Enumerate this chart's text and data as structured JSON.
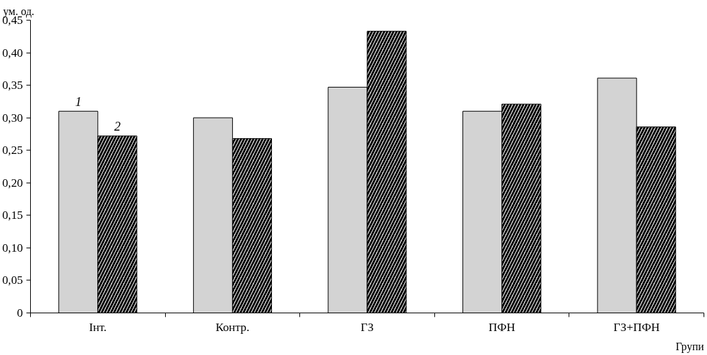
{
  "chart_data": {
    "type": "bar",
    "ylabel": "ум. од.",
    "xlabel": "Групи",
    "categories": [
      "Інт.",
      "Контр.",
      "ГЗ",
      "ПФН",
      "ГЗ+ПФН"
    ],
    "series": [
      {
        "name": "1",
        "color": "#d3d3d3",
        "values": [
          0.31,
          0.3,
          0.347,
          0.31,
          0.361
        ]
      },
      {
        "name": "2",
        "color": "#000000",
        "values": [
          0.272,
          0.268,
          0.433,
          0.321,
          0.286
        ]
      }
    ],
    "ylim": [
      0,
      0.45
    ],
    "yticks": [
      0,
      {
        "value": 0.05,
        "label": "0,05"
      },
      {
        "value": 0.1,
        "label": "0,10"
      },
      {
        "value": 0.15,
        "label": "0,15"
      },
      {
        "value": 0.2,
        "label": "0,20"
      },
      {
        "value": 0.25,
        "label": "0,25"
      },
      {
        "value": 0.3,
        "label": "0,30"
      },
      {
        "value": 0.35,
        "label": "0,35"
      },
      {
        "value": 0.4,
        "label": "0,40"
      },
      {
        "value": 0.45,
        "label": "0,45"
      }
    ],
    "grid": false
  }
}
